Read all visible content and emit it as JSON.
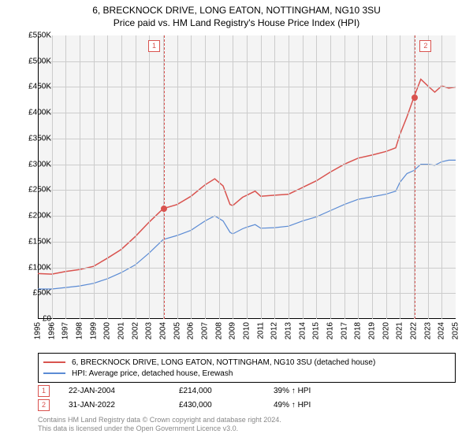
{
  "title": "6, BRECKNOCK DRIVE, LONG EATON, NOTTINGHAM, NG10 3SU",
  "subtitle": "Price paid vs. HM Land Registry's House Price Index (HPI)",
  "chart": {
    "type": "line",
    "background_color": "#f4f4f4",
    "grid_color": "#cccccc",
    "axis_color": "#000000",
    "x": {
      "min": 1995,
      "max": 2025,
      "tick_step": 1,
      "label_fontsize": 10
    },
    "y": {
      "min": 0,
      "max": 550000,
      "tick_step": 50000,
      "prefix": "£",
      "suffix": "K",
      "tick_div": 1000,
      "label_fontsize": 10
    },
    "series": [
      {
        "id": "property",
        "label": "6, BRECKNOCK DRIVE, LONG EATON, NOTTINGHAM, NG10 3SU (detached house)",
        "color": "#d9534f",
        "line_width": 1.5,
        "data": [
          [
            1995,
            88000
          ],
          [
            1996,
            87000
          ],
          [
            1997,
            92000
          ],
          [
            1998,
            96000
          ],
          [
            1999,
            102000
          ],
          [
            2000,
            118000
          ],
          [
            2001,
            135000
          ],
          [
            2002,
            160000
          ],
          [
            2003,
            188000
          ],
          [
            2004,
            214000
          ],
          [
            2005,
            222000
          ],
          [
            2006,
            238000
          ],
          [
            2007,
            260000
          ],
          [
            2007.7,
            272000
          ],
          [
            2008.3,
            258000
          ],
          [
            2008.8,
            222000
          ],
          [
            2009,
            220000
          ],
          [
            2009.7,
            236000
          ],
          [
            2010,
            240000
          ],
          [
            2010.6,
            248000
          ],
          [
            2011,
            238000
          ],
          [
            2012,
            240000
          ],
          [
            2013,
            242000
          ],
          [
            2014,
            255000
          ],
          [
            2015,
            268000
          ],
          [
            2016,
            285000
          ],
          [
            2017,
            300000
          ],
          [
            2018,
            312000
          ],
          [
            2019,
            318000
          ],
          [
            2020,
            325000
          ],
          [
            2020.7,
            332000
          ],
          [
            2021,
            358000
          ],
          [
            2021.5,
            392000
          ],
          [
            2022,
            430000
          ],
          [
            2022.5,
            465000
          ],
          [
            2023,
            452000
          ],
          [
            2023.5,
            440000
          ],
          [
            2024,
            452000
          ],
          [
            2024.5,
            448000
          ],
          [
            2025,
            450000
          ]
        ]
      },
      {
        "id": "hpi",
        "label": "HPI: Average price, detached house, Erewash",
        "color": "#5b8bd4",
        "line_width": 1.2,
        "data": [
          [
            1995,
            58000
          ],
          [
            1996,
            58000
          ],
          [
            1997,
            61000
          ],
          [
            1998,
            64000
          ],
          [
            1999,
            69000
          ],
          [
            2000,
            78000
          ],
          [
            2001,
            90000
          ],
          [
            2002,
            105000
          ],
          [
            2003,
            128000
          ],
          [
            2004,
            154000
          ],
          [
            2005,
            162000
          ],
          [
            2006,
            172000
          ],
          [
            2007,
            190000
          ],
          [
            2007.7,
            200000
          ],
          [
            2008.3,
            190000
          ],
          [
            2008.8,
            168000
          ],
          [
            2009,
            165000
          ],
          [
            2009.7,
            175000
          ],
          [
            2010,
            178000
          ],
          [
            2010.6,
            183000
          ],
          [
            2011,
            176000
          ],
          [
            2012,
            177000
          ],
          [
            2013,
            180000
          ],
          [
            2014,
            190000
          ],
          [
            2015,
            198000
          ],
          [
            2016,
            210000
          ],
          [
            2017,
            222000
          ],
          [
            2018,
            232000
          ],
          [
            2019,
            237000
          ],
          [
            2020,
            242000
          ],
          [
            2020.7,
            248000
          ],
          [
            2021,
            265000
          ],
          [
            2021.5,
            282000
          ],
          [
            2022,
            288000
          ],
          [
            2022.5,
            300000
          ],
          [
            2023,
            300000
          ],
          [
            2023.5,
            298000
          ],
          [
            2024,
            305000
          ],
          [
            2024.5,
            308000
          ],
          [
            2025,
            308000
          ]
        ]
      }
    ],
    "markers": [
      {
        "n": 1,
        "x": 2004.06,
        "y": 214000,
        "box_side": "left"
      },
      {
        "n": 2,
        "x": 2022.08,
        "y": 430000,
        "box_side": "right"
      }
    ],
    "marker_line_color": "#d9534f",
    "marker_box_border": "#d9534f",
    "marker_box_text": "#d9534f",
    "marker_dot_color": "#d9534f"
  },
  "legend": {
    "border_color": "#000000",
    "items": [
      {
        "color": "#d9534f",
        "label": "6, BRECKNOCK DRIVE, LONG EATON, NOTTINGHAM, NG10 3SU (detached house)"
      },
      {
        "color": "#5b8bd4",
        "label": "HPI: Average price, detached house, Erewash"
      }
    ]
  },
  "sales": [
    {
      "n": "1",
      "date": "22-JAN-2004",
      "price": "£214,000",
      "pct": "39% ↑ HPI"
    },
    {
      "n": "2",
      "date": "31-JAN-2022",
      "price": "£430,000",
      "pct": "49% ↑ HPI"
    }
  ],
  "footer": {
    "line1": "Contains HM Land Registry data © Crown copyright and database right 2024.",
    "line2": "This data is licensed under the Open Government Licence v3.0."
  }
}
